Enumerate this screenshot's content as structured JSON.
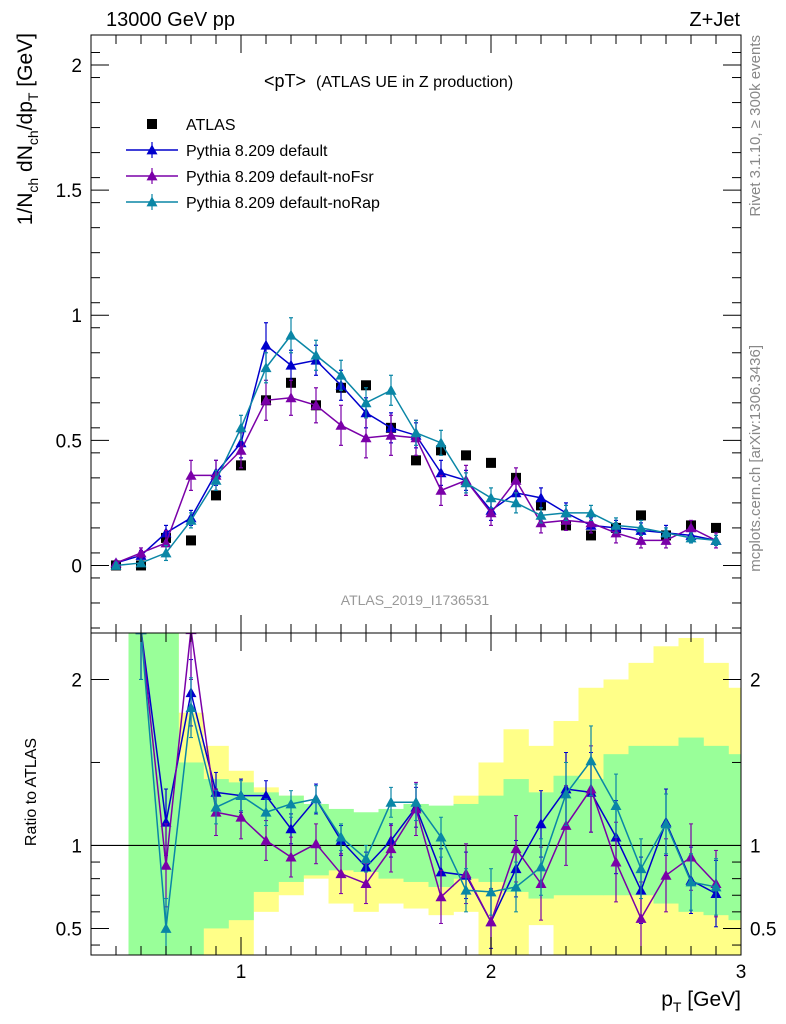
{
  "header": {
    "left": "13000 GeV pp",
    "right": "Z+Jet"
  },
  "side_labels": {
    "rivet": "Rivet 3.1.10, ≥ 300k events",
    "mcplots": "mcplots.cern.ch [arXiv:1306.3436]"
  },
  "colors": {
    "atlas": "#000000",
    "default": "#0000cc",
    "noFsr": "#7a00a8",
    "noRap": "#0a86a6",
    "band_green": "#99ff99",
    "band_yellow": "#ffff88"
  },
  "chart_data": [
    {
      "type": "line",
      "title": "<pT>",
      "subtitle": "(ATLAS UE in Z production)",
      "watermark": "ATLAS_2019_I1736531",
      "ylabel": "1/N_ch dN_ch/dp_T [GeV]",
      "xlabel": "p_T [GeV]",
      "xlim": [
        0.4,
        3.0
      ],
      "ylim": [
        -0.27,
        2.12
      ],
      "yticks": [
        0,
        0.5,
        1,
        1.5,
        2
      ],
      "ytick_labels": [
        "0",
        "0.5",
        "1",
        "1.5",
        "2"
      ],
      "xticks": [
        1,
        2,
        3
      ],
      "legend_position": "top-left",
      "x": [
        0.5,
        0.6,
        0.7,
        0.8,
        0.9,
        1.0,
        1.1,
        1.2,
        1.3,
        1.4,
        1.5,
        1.6,
        1.7,
        1.8,
        1.9,
        2.0,
        2.1,
        2.2,
        2.3,
        2.4,
        2.5,
        2.6,
        2.7,
        2.8,
        2.9
      ],
      "series": [
        {
          "name": "ATLAS",
          "marker": "square",
          "color": "#000000",
          "values": [
            0.0,
            0.0,
            0.11,
            0.1,
            0.28,
            0.4,
            0.66,
            0.73,
            0.64,
            0.71,
            0.72,
            0.55,
            0.42,
            0.46,
            0.44,
            0.41,
            0.35,
            0.24,
            0.16,
            0.12,
            0.15,
            0.2,
            0.12,
            0.16,
            0.15
          ]
        },
        {
          "name": "Pythia 8.209 default",
          "marker": "triangle",
          "color": "#0000cc",
          "values": [
            0.01,
            0.04,
            0.13,
            0.19,
            0.37,
            0.49,
            0.88,
            0.8,
            0.82,
            0.72,
            0.61,
            0.55,
            0.52,
            0.37,
            0.34,
            0.22,
            0.29,
            0.27,
            0.21,
            0.16,
            0.15,
            0.14,
            0.13,
            0.12,
            0.1
          ],
          "errors": [
            0.01,
            0.02,
            0.03,
            0.03,
            0.05,
            0.06,
            0.09,
            0.06,
            0.06,
            0.06,
            0.06,
            0.06,
            0.05,
            0.05,
            0.04,
            0.04,
            0.04,
            0.04,
            0.04,
            0.03,
            0.03,
            0.03,
            0.03,
            0.03,
            0.02
          ]
        },
        {
          "name": "Pythia 8.209 default-noFsr",
          "marker": "triangle",
          "color": "#7a00a8",
          "values": [
            0.01,
            0.05,
            0.09,
            0.36,
            0.36,
            0.46,
            0.66,
            0.67,
            0.64,
            0.56,
            0.51,
            0.52,
            0.51,
            0.3,
            0.34,
            0.21,
            0.34,
            0.17,
            0.18,
            0.17,
            0.13,
            0.1,
            0.1,
            0.15,
            0.1
          ],
          "errors": [
            0.01,
            0.02,
            0.05,
            0.06,
            0.06,
            0.07,
            0.08,
            0.07,
            0.07,
            0.08,
            0.08,
            0.08,
            0.07,
            0.06,
            0.06,
            0.05,
            0.05,
            0.04,
            0.04,
            0.04,
            0.04,
            0.03,
            0.03,
            0.03,
            0.03
          ]
        },
        {
          "name": "Pythia 8.209 default-noRap",
          "marker": "triangle",
          "color": "#0a86a6",
          "values": [
            0.0,
            0.01,
            0.05,
            0.18,
            0.34,
            0.55,
            0.79,
            0.92,
            0.84,
            0.76,
            0.65,
            0.7,
            0.53,
            0.49,
            0.33,
            0.27,
            0.25,
            0.2,
            0.21,
            0.21,
            0.16,
            0.15,
            0.13,
            0.11,
            0.1
          ],
          "errors": [
            0.01,
            0.01,
            0.03,
            0.03,
            0.04,
            0.05,
            0.06,
            0.07,
            0.06,
            0.06,
            0.06,
            0.06,
            0.05,
            0.05,
            0.04,
            0.04,
            0.04,
            0.03,
            0.03,
            0.03,
            0.03,
            0.03,
            0.02,
            0.02,
            0.02
          ]
        }
      ]
    },
    {
      "type": "line",
      "ylabel": "Ratio to ATLAS",
      "xlabel": "p_T [GeV]",
      "xlim": [
        0.4,
        3.0
      ],
      "ylim": [
        0.34,
        2.28
      ],
      "yticks": [
        0.5,
        1,
        2
      ],
      "ytick_labels": [
        "0.5",
        "1",
        "2"
      ],
      "xticks": [
        1,
        2,
        3
      ],
      "xtick_labels": [
        "1",
        "2",
        "3"
      ],
      "reference_line": 1,
      "bin_edges": [
        0.55,
        0.65,
        0.75,
        0.85,
        0.95,
        1.05,
        1.15,
        1.25,
        1.35,
        1.45,
        1.55,
        1.65,
        1.75,
        1.85,
        1.95,
        2.05,
        2.15,
        2.25,
        2.35,
        2.45,
        2.55,
        2.65,
        2.75,
        2.85,
        2.95
      ],
      "bands": [
        {
          "name": "ATLAS stat",
          "color": "#99ff99",
          "low": [
            0.34,
            0.34,
            0.34,
            0.5,
            0.55,
            0.72,
            0.78,
            0.82,
            0.85,
            0.84,
            0.8,
            0.78,
            0.75,
            0.8,
            0.78,
            0.72,
            0.68,
            0.7,
            0.7,
            0.7,
            0.7,
            0.65,
            0.6,
            0.58,
            0.55
          ],
          "high": [
            2.28,
            2.28,
            1.5,
            1.4,
            1.38,
            1.32,
            1.3,
            1.25,
            1.22,
            1.2,
            1.22,
            1.25,
            1.24,
            1.25,
            1.3,
            1.4,
            1.32,
            1.42,
            1.4,
            1.55,
            1.6,
            1.6,
            1.65,
            1.6,
            1.55
          ]
        },
        {
          "name": "ATLAS syst",
          "color": "#ffff88",
          "low": [
            0.34,
            0.34,
            0.34,
            0.34,
            0.34,
            0.6,
            0.7,
            0.8,
            0.65,
            0.6,
            0.65,
            0.62,
            0.58,
            0.6,
            0.34,
            0.34,
            0.52,
            0.34,
            0.34,
            0.34,
            0.34,
            0.34,
            0.34,
            0.34,
            0.34
          ],
          "high": [
            2.28,
            2.28,
            1.8,
            1.6,
            1.45,
            1.35,
            1.3,
            1.24,
            1.2,
            1.18,
            1.2,
            1.22,
            1.22,
            1.3,
            1.5,
            1.7,
            1.6,
            1.75,
            1.95,
            2.0,
            2.1,
            2.2,
            2.25,
            2.1,
            1.95
          ]
        }
      ],
      "series": [
        {
          "name": "Pythia 8.209 default",
          "color": "#0000cc",
          "values": [
            null,
            2.3,
            1.14,
            1.92,
            1.32,
            1.3,
            1.3,
            1.1,
            1.28,
            1.03,
            0.87,
            1.03,
            1.23,
            0.84,
            0.82,
            0.54,
            0.86,
            1.13,
            1.34,
            1.32,
            1.05,
            0.73,
            1.14,
            0.79,
            0.71
          ],
          "errors": [
            0,
            0.3,
            0.2,
            0.2,
            0.12,
            0.1,
            0.09,
            0.09,
            0.09,
            0.09,
            0.09,
            0.1,
            0.12,
            0.14,
            0.14,
            0.16,
            0.17,
            0.2,
            0.22,
            0.24,
            0.22,
            0.2,
            0.2,
            0.2,
            0.2
          ]
        },
        {
          "name": "Pythia 8.209 default-noFsr",
          "color": "#7a00a8",
          "values": [
            null,
            2.3,
            0.88,
            2.3,
            1.2,
            1.17,
            1.03,
            0.93,
            1.01,
            0.83,
            0.77,
            0.98,
            1.22,
            0.69,
            0.83,
            0.54,
            0.98,
            0.77,
            1.12,
            1.34,
            0.9,
            0.56,
            0.82,
            0.93,
            0.77
          ],
          "errors": [
            0,
            0.3,
            0.25,
            0.3,
            0.14,
            0.13,
            0.12,
            0.12,
            0.12,
            0.12,
            0.12,
            0.14,
            0.16,
            0.16,
            0.18,
            0.2,
            0.2,
            0.22,
            0.24,
            0.26,
            0.24,
            0.22,
            0.22,
            0.2,
            0.2
          ]
        },
        {
          "name": "Pythia 8.209 default-noRap",
          "color": "#0a86a6",
          "values": [
            null,
            2.3,
            0.5,
            1.83,
            1.23,
            1.3,
            1.2,
            1.25,
            1.28,
            1.05,
            0.92,
            1.26,
            1.26,
            1.05,
            0.73,
            0.72,
            0.75,
            0.87,
            1.31,
            1.51,
            1.24,
            0.86,
            1.13,
            0.78,
            0.75
          ],
          "errors": [
            0,
            0.3,
            0.18,
            0.18,
            0.1,
            0.09,
            0.08,
            0.08,
            0.08,
            0.08,
            0.08,
            0.09,
            0.11,
            0.12,
            0.13,
            0.14,
            0.15,
            0.17,
            0.19,
            0.21,
            0.19,
            0.18,
            0.18,
            0.17,
            0.17
          ]
        }
      ]
    }
  ]
}
